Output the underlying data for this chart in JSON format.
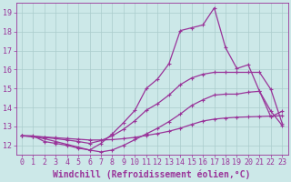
{
  "xlabel": "Windchill (Refroidissement éolien,°C)",
  "bg_color": "#cce8e8",
  "xlim": [
    -0.5,
    23.5
  ],
  "ylim": [
    11.5,
    19.5
  ],
  "yticks": [
    12,
    13,
    14,
    15,
    16,
    17,
    18,
    19
  ],
  "x_ticks": [
    0,
    1,
    2,
    3,
    4,
    5,
    6,
    7,
    8,
    9,
    10,
    11,
    12,
    13,
    14,
    15,
    16,
    17,
    18,
    19,
    20,
    21,
    22,
    23
  ],
  "grid_color": "#aacccc",
  "line_color": "#993399",
  "series": [
    {
      "x": [
        0,
        1,
        2,
        3,
        4,
        5,
        6,
        7,
        8,
        9,
        10,
        11,
        12,
        13,
        14,
        15,
        16,
        17,
        18,
        19,
        20,
        21,
        22,
        23
      ],
      "y": [
        12.5,
        12.5,
        12.2,
        12.1,
        12.0,
        11.85,
        11.75,
        12.1,
        12.6,
        13.2,
        13.85,
        15.0,
        15.5,
        16.3,
        18.05,
        18.2,
        18.35,
        19.25,
        17.15,
        16.05,
        16.25,
        14.85,
        13.5,
        13.8
      ],
      "color": "#993399"
    },
    {
      "x": [
        0,
        1,
        2,
        3,
        4,
        5,
        6,
        7,
        8,
        9,
        10,
        11,
        12,
        13,
        14,
        15,
        16,
        17,
        18,
        19,
        20,
        21,
        22,
        23
      ],
      "y": [
        12.5,
        12.45,
        12.35,
        12.2,
        12.05,
        11.9,
        11.75,
        11.65,
        11.75,
        12.0,
        12.3,
        12.6,
        12.9,
        13.25,
        13.65,
        14.1,
        14.4,
        14.65,
        14.7,
        14.7,
        14.8,
        14.85,
        13.8,
        13.05
      ],
      "color": "#993399"
    },
    {
      "x": [
        0,
        1,
        2,
        3,
        4,
        5,
        6,
        7,
        8,
        9,
        10,
        11,
        12,
        13,
        14,
        15,
        16,
        17,
        18,
        19,
        20,
        21,
        22,
        23
      ],
      "y": [
        12.5,
        12.48,
        12.44,
        12.4,
        12.36,
        12.32,
        12.28,
        12.28,
        12.3,
        12.35,
        12.42,
        12.52,
        12.62,
        12.74,
        12.9,
        13.1,
        13.28,
        13.38,
        13.44,
        13.48,
        13.5,
        13.52,
        13.54,
        13.56
      ],
      "color": "#993399"
    },
    {
      "x": [
        0,
        1,
        2,
        3,
        4,
        5,
        6,
        7,
        8,
        9,
        10,
        11,
        12,
        13,
        14,
        15,
        16,
        17,
        18,
        19,
        20,
        21,
        22,
        23
      ],
      "y": [
        12.5,
        12.48,
        12.42,
        12.35,
        12.28,
        12.2,
        12.1,
        12.25,
        12.5,
        12.85,
        13.3,
        13.85,
        14.2,
        14.65,
        15.2,
        15.55,
        15.75,
        15.85,
        15.85,
        15.85,
        15.85,
        15.85,
        14.95,
        13.15
      ],
      "color": "#993399"
    }
  ],
  "tick_color": "#993399",
  "tick_fontsize": 6.0,
  "xlabel_fontsize": 7.0,
  "lw": 0.9,
  "ms": 2.5
}
